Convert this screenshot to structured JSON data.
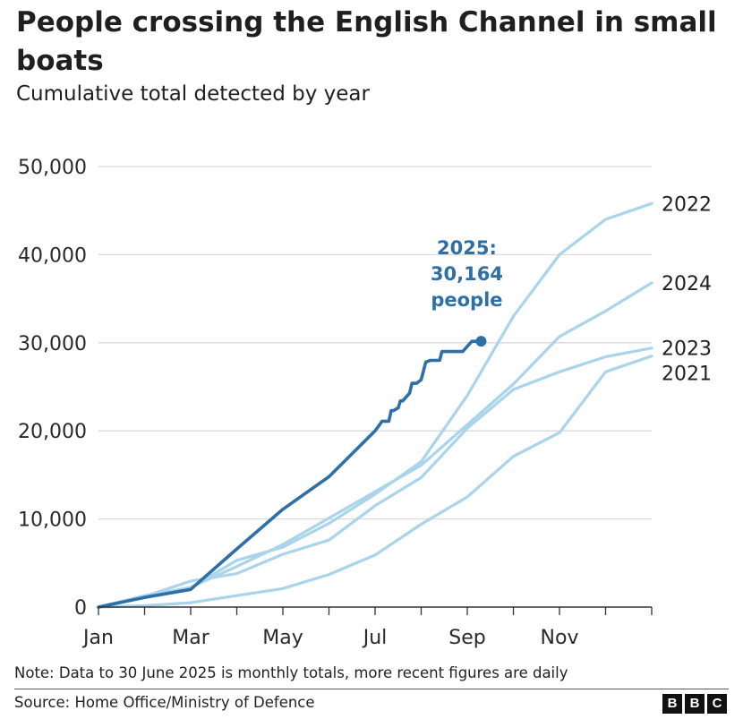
{
  "header": {
    "title": "People crossing the English Channel in small boats",
    "subtitle": "Cumulative total detected by year"
  },
  "footer": {
    "note": "Note: Data to 30 June 2025 is monthly totals, more recent figures are daily",
    "source": "Source: Home Office/Ministry of Defence",
    "logo_letters": [
      "B",
      "B",
      "C"
    ]
  },
  "colors": {
    "highlight": "#2e6fa7",
    "past_years": "#a9d4ea",
    "grid": "#d9d9d9",
    "axis": "#333333"
  },
  "chart_data": {
    "type": "line",
    "title": "People crossing the English Channel in small boats",
    "subtitle": "Cumulative total detected by year",
    "xlabel": "",
    "ylabel": "",
    "x_unit": "month (0 = 1 Jan, 12 = 31 Dec)",
    "xlim": [
      0,
      12
    ],
    "ylim": [
      0,
      50000
    ],
    "y_ticks": [
      0,
      10000,
      20000,
      30000,
      40000,
      50000
    ],
    "y_tick_labels": [
      "0",
      "10,000",
      "20,000",
      "30,000",
      "40,000",
      "50,000"
    ],
    "x_ticks": [
      0,
      2,
      4,
      6,
      8,
      10
    ],
    "x_tick_labels": [
      "Jan",
      "Mar",
      "May",
      "Jul",
      "Sep",
      "Nov"
    ],
    "minor_x_ticks": [
      1,
      3,
      5,
      7,
      9,
      11,
      12
    ],
    "grid": true,
    "series": [
      {
        "name": "2021",
        "label": "2021",
        "highlight": false,
        "x": [
          0,
          1,
          2,
          3,
          4,
          5,
          6,
          7,
          8,
          9,
          10,
          11,
          12
        ],
        "y": [
          0,
          150,
          500,
          1300,
          2100,
          3700,
          5900,
          9400,
          12500,
          17100,
          19800,
          26700,
          28500
        ]
      },
      {
        "name": "2023",
        "label": "2023",
        "highlight": false,
        "x": [
          0,
          1,
          2,
          3,
          4,
          5,
          6,
          7,
          8,
          9,
          10,
          11,
          12
        ],
        "y": [
          0,
          1200,
          2950,
          3800,
          6000,
          7600,
          11500,
          14700,
          20300,
          24700,
          26700,
          28400,
          29400
        ]
      },
      {
        "name": "2024",
        "label": "2024",
        "highlight": false,
        "x": [
          0,
          1,
          2,
          3,
          4,
          5,
          6,
          7,
          8,
          9,
          10,
          11,
          12
        ],
        "y": [
          0,
          1200,
          2250,
          4600,
          7100,
          10100,
          13100,
          16100,
          20700,
          25300,
          30700,
          33600,
          36800
        ]
      },
      {
        "name": "2022",
        "label": "2022",
        "highlight": false,
        "x": [
          0,
          1,
          2,
          3,
          4,
          5,
          6,
          7,
          8,
          9,
          10,
          11,
          12
        ],
        "y": [
          0,
          1300,
          2200,
          5300,
          6800,
          9500,
          12800,
          16500,
          24000,
          33000,
          40000,
          44000,
          45800
        ]
      },
      {
        "name": "2025",
        "label": "2025",
        "highlight": true,
        "x": [
          0,
          1,
          2,
          3,
          4,
          5,
          6,
          6.1,
          6.15,
          6.3,
          6.35,
          6.4,
          6.5,
          6.55,
          6.6,
          6.7,
          6.75,
          6.8,
          6.9,
          6.95,
          7.0,
          7.1,
          7.2,
          7.25,
          7.3,
          7.4,
          7.45,
          7.55,
          7.65,
          7.8,
          7.85,
          7.9,
          8.1,
          8.25,
          8.3
        ],
        "y": [
          0,
          1100,
          2000,
          6600,
          11100,
          14800,
          20000,
          20700,
          21100,
          21100,
          22300,
          22300,
          22600,
          23400,
          23400,
          24000,
          24300,
          25400,
          25400,
          25600,
          25800,
          27800,
          28000,
          28000,
          28000,
          28000,
          29000,
          29000,
          29000,
          29000,
          29000,
          29000,
          30164,
          30164,
          30164
        ]
      }
    ],
    "annotations": [
      {
        "text": "2025:",
        "series": "2025"
      },
      {
        "text": "30,164",
        "series": "2025"
      },
      {
        "text": "people",
        "series": "2025"
      }
    ],
    "latest": {
      "series": "2025",
      "x": 8.3,
      "y": 30164
    }
  }
}
